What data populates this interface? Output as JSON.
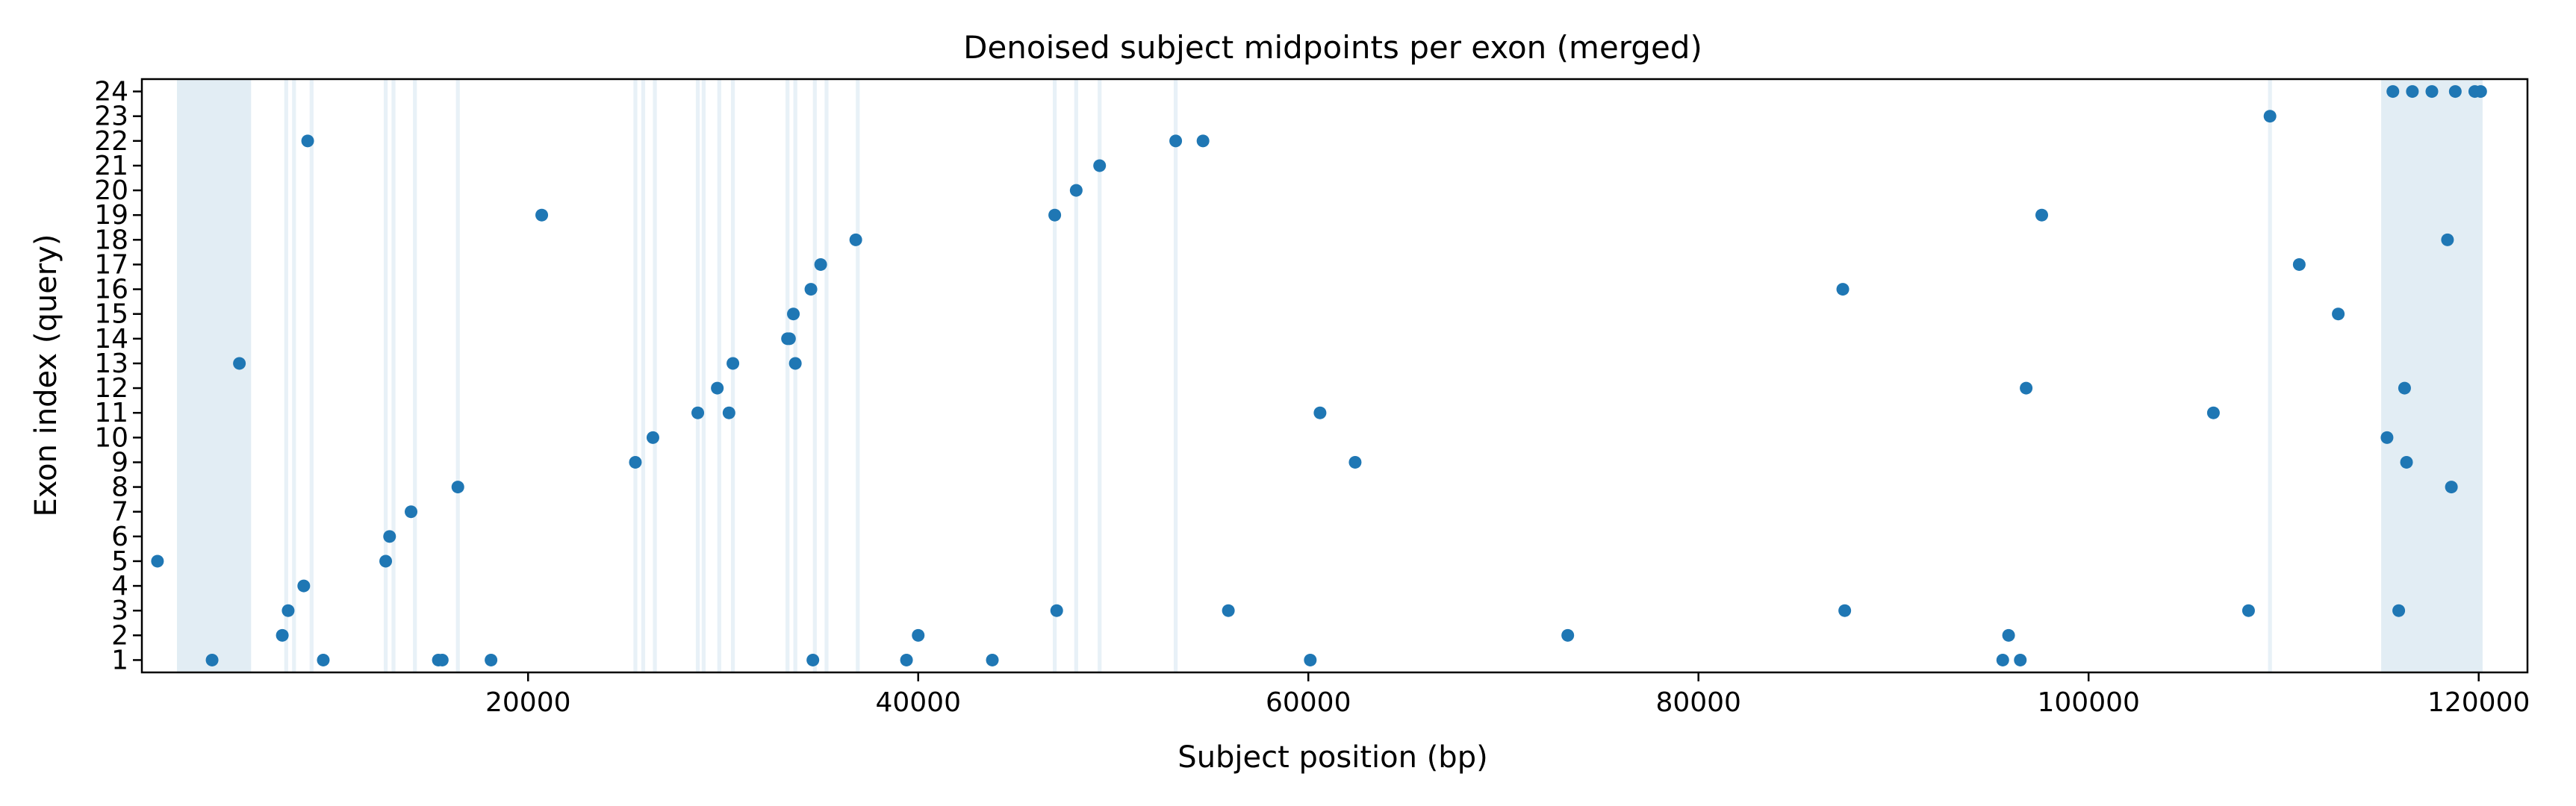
{
  "chart_data": {
    "type": "scatter",
    "title": "Denoised subject midpoints per exon (merged)",
    "xlabel": "Subject position (bp)",
    "ylabel": "Exon index (query)",
    "xlim": [
      200,
      122500
    ],
    "ylim": [
      0.5,
      24.5
    ],
    "x_ticks": [
      20000,
      40000,
      60000,
      80000,
      100000,
      120000
    ],
    "y_ticks": [
      1,
      2,
      3,
      4,
      5,
      6,
      7,
      8,
      9,
      10,
      11,
      12,
      13,
      14,
      15,
      16,
      17,
      18,
      19,
      20,
      21,
      22,
      23,
      24
    ],
    "grid": false,
    "colors": {
      "points": "#1f77b4",
      "bands": "#d6e6f0",
      "axes": "#000000"
    },
    "shaded_regions": [
      [
        2000,
        5800
      ],
      [
        7500,
        7700
      ],
      [
        7900,
        8100
      ],
      [
        8800,
        9000
      ],
      [
        12600,
        12800
      ],
      [
        13000,
        13200
      ],
      [
        14100,
        14300
      ],
      [
        16300,
        16500
      ],
      [
        25400,
        25600
      ],
      [
        25800,
        26000
      ],
      [
        26400,
        26600
      ],
      [
        28600,
        28800
      ],
      [
        28900,
        29100
      ],
      [
        29700,
        29900
      ],
      [
        30400,
        30600
      ],
      [
        33200,
        33400
      ],
      [
        33600,
        33800
      ],
      [
        34600,
        34800
      ],
      [
        35200,
        35400
      ],
      [
        36800,
        37000
      ],
      [
        46900,
        47100
      ],
      [
        48000,
        48200
      ],
      [
        49200,
        49400
      ],
      [
        53100,
        53300
      ],
      [
        109200,
        109400
      ],
      [
        115000,
        120200
      ]
    ],
    "points": [
      {
        "x": 1000,
        "y": 5
      },
      {
        "x": 3800,
        "y": 1
      },
      {
        "x": 5200,
        "y": 13
      },
      {
        "x": 7400,
        "y": 2
      },
      {
        "x": 7700,
        "y": 3
      },
      {
        "x": 8500,
        "y": 4
      },
      {
        "x": 8700,
        "y": 22
      },
      {
        "x": 9500,
        "y": 1
      },
      {
        "x": 12700,
        "y": 5
      },
      {
        "x": 12900,
        "y": 6
      },
      {
        "x": 14000,
        "y": 7
      },
      {
        "x": 15400,
        "y": 1
      },
      {
        "x": 15600,
        "y": 1
      },
      {
        "x": 16400,
        "y": 8
      },
      {
        "x": 18100,
        "y": 1
      },
      {
        "x": 20700,
        "y": 19
      },
      {
        "x": 25500,
        "y": 9
      },
      {
        "x": 26400,
        "y": 10
      },
      {
        "x": 28700,
        "y": 11
      },
      {
        "x": 29700,
        "y": 12
      },
      {
        "x": 30300,
        "y": 11
      },
      {
        "x": 30500,
        "y": 13
      },
      {
        "x": 33300,
        "y": 14
      },
      {
        "x": 33400,
        "y": 14
      },
      {
        "x": 33600,
        "y": 15
      },
      {
        "x": 33700,
        "y": 13
      },
      {
        "x": 34500,
        "y": 16
      },
      {
        "x": 34600,
        "y": 1
      },
      {
        "x": 35000,
        "y": 17
      },
      {
        "x": 36800,
        "y": 18
      },
      {
        "x": 39400,
        "y": 1
      },
      {
        "x": 40000,
        "y": 2
      },
      {
        "x": 43800,
        "y": 1
      },
      {
        "x": 47000,
        "y": 19
      },
      {
        "x": 47100,
        "y": 3
      },
      {
        "x": 48100,
        "y": 20
      },
      {
        "x": 49300,
        "y": 21
      },
      {
        "x": 53200,
        "y": 22
      },
      {
        "x": 54600,
        "y": 22
      },
      {
        "x": 55900,
        "y": 3
      },
      {
        "x": 60100,
        "y": 1
      },
      {
        "x": 60600,
        "y": 11
      },
      {
        "x": 62400,
        "y": 9
      },
      {
        "x": 73300,
        "y": 2
      },
      {
        "x": 87400,
        "y": 16
      },
      {
        "x": 87500,
        "y": 3
      },
      {
        "x": 95600,
        "y": 1
      },
      {
        "x": 95900,
        "y": 2
      },
      {
        "x": 96500,
        "y": 1
      },
      {
        "x": 96800,
        "y": 12
      },
      {
        "x": 97600,
        "y": 19
      },
      {
        "x": 106400,
        "y": 11
      },
      {
        "x": 108200,
        "y": 3
      },
      {
        "x": 109300,
        "y": 23
      },
      {
        "x": 110800,
        "y": 17
      },
      {
        "x": 112800,
        "y": 15
      },
      {
        "x": 115300,
        "y": 10
      },
      {
        "x": 115600,
        "y": 24
      },
      {
        "x": 115900,
        "y": 3
      },
      {
        "x": 116200,
        "y": 12
      },
      {
        "x": 116300,
        "y": 9
      },
      {
        "x": 116600,
        "y": 24
      },
      {
        "x": 117600,
        "y": 24
      },
      {
        "x": 118400,
        "y": 18
      },
      {
        "x": 118600,
        "y": 8
      },
      {
        "x": 118800,
        "y": 24
      },
      {
        "x": 119800,
        "y": 24
      },
      {
        "x": 120100,
        "y": 24
      }
    ]
  }
}
